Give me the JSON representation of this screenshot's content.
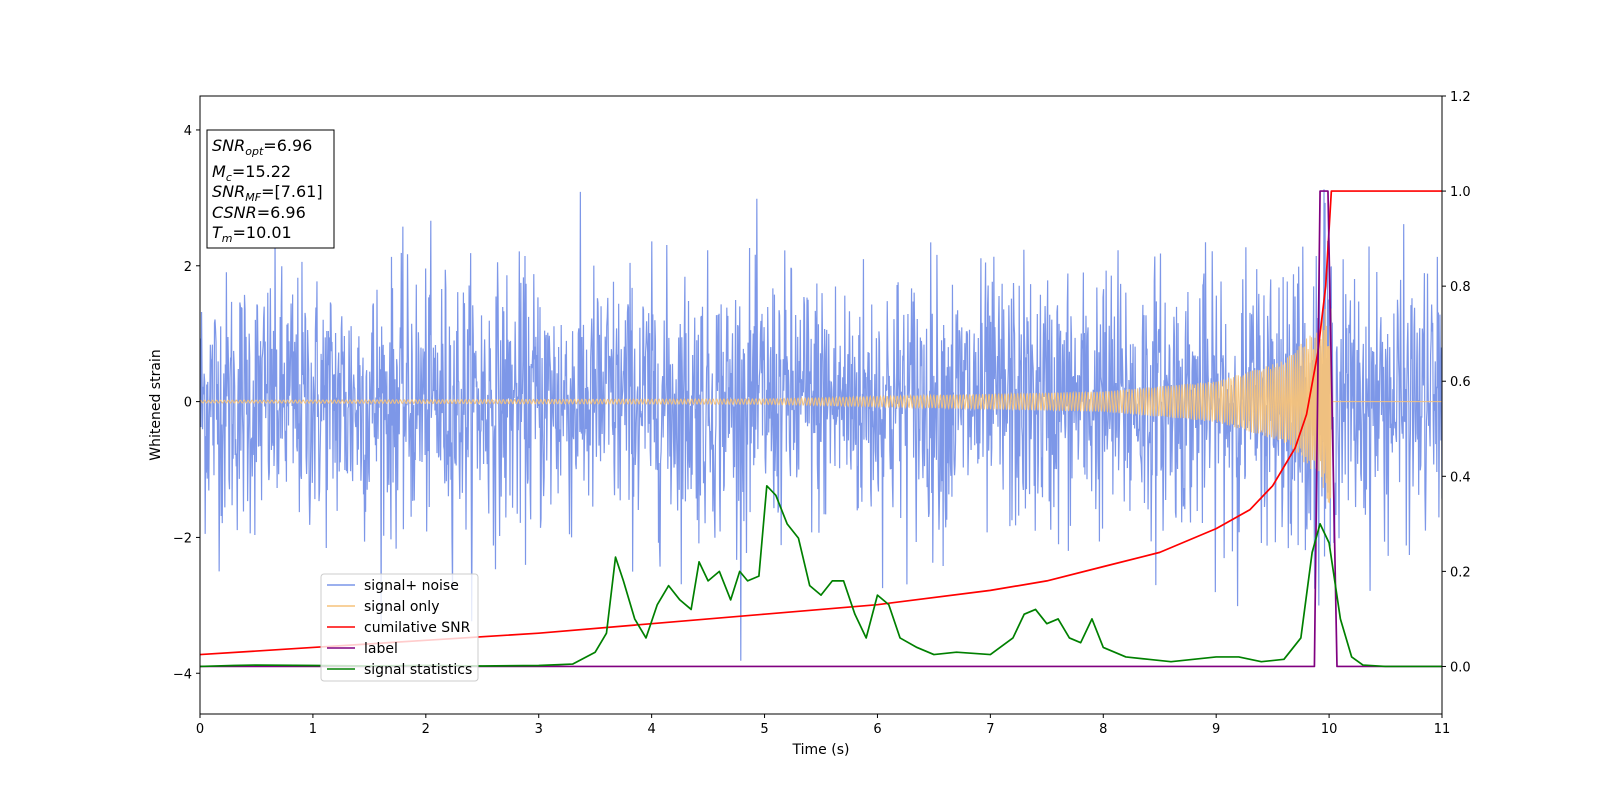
{
  "chart_data": {
    "type": "line",
    "xlabel": "Time (s)",
    "ylabel": "Whitened strain",
    "xlim": [
      0,
      11
    ],
    "ylim_left": [
      -4.6,
      4.5
    ],
    "ylim_right": [
      -0.1,
      1.2
    ],
    "x_ticks": [
      "0",
      "1",
      "2",
      "3",
      "4",
      "5",
      "6",
      "7",
      "8",
      "9",
      "10",
      "11"
    ],
    "y_ticks_left": [
      "−4",
      "−2",
      "0",
      "2",
      "4"
    ],
    "y_ticks_right": [
      "0.0",
      "0.2",
      "0.4",
      "0.6",
      "0.8",
      "1.0",
      "1.2"
    ],
    "grid": false,
    "legend_position": "lower left",
    "annotation": {
      "snr_opt": {
        "label": "SNR",
        "sub": "opt",
        "value": "=6.96"
      },
      "mc": {
        "label": "M",
        "sub": "c",
        "value": "=15.22"
      },
      "snr_mf": {
        "label": "SNR",
        "sub": "MF",
        "value": "=[7.61]"
      },
      "csnr": {
        "label": "CSNR",
        "value": "=6.96"
      },
      "tm": {
        "label": "T",
        "sub": "m",
        "value": "=10.01"
      }
    },
    "series": [
      {
        "name": "signal+ noise",
        "axis": "left",
        "color": "#7a95e8",
        "noise_std": 1.0,
        "noise_range_approx": [
          -4.2,
          4.1
        ],
        "x_range": [
          0,
          11
        ]
      },
      {
        "name": "signal only",
        "axis": "left",
        "color": "#f5c27a",
        "description_points": [
          [
            0,
            0.02
          ],
          [
            5,
            0.04
          ],
          [
            8,
            0.15
          ],
          [
            9,
            0.3
          ],
          [
            9.6,
            0.6
          ],
          [
            9.9,
            1.1
          ],
          [
            10.02,
            1.6
          ]
        ],
        "x_range": [
          0,
          11
        ]
      },
      {
        "name": "cumilative SNR",
        "axis": "right",
        "color": "#ff0000",
        "points": [
          [
            0,
            0.025
          ],
          [
            1,
            0.04
          ],
          [
            2,
            0.055
          ],
          [
            3,
            0.07
          ],
          [
            4,
            0.09
          ],
          [
            5,
            0.11
          ],
          [
            6,
            0.13
          ],
          [
            7,
            0.16
          ],
          [
            7.5,
            0.18
          ],
          [
            8,
            0.21
          ],
          [
            8.5,
            0.24
          ],
          [
            9,
            0.29
          ],
          [
            9.3,
            0.33
          ],
          [
            9.5,
            0.38
          ],
          [
            9.7,
            0.46
          ],
          [
            9.8,
            0.53
          ],
          [
            9.9,
            0.66
          ],
          [
            9.97,
            0.8
          ],
          [
            10.02,
            1.0
          ],
          [
            11,
            1.0
          ]
        ]
      },
      {
        "name": "label",
        "axis": "right",
        "color": "#800080",
        "points": [
          [
            0,
            0.0
          ],
          [
            9.87,
            0.0
          ],
          [
            9.92,
            1.0
          ],
          [
            9.99,
            1.0
          ],
          [
            10.07,
            0.0
          ],
          [
            11,
            0.0
          ]
        ]
      },
      {
        "name": "signal statistics",
        "axis": "right",
        "color": "#008000",
        "points": [
          [
            0,
            0.0
          ],
          [
            0.3,
            0.002
          ],
          [
            0.5,
            0.003
          ],
          [
            1,
            0.002
          ],
          [
            1.5,
            0.001
          ],
          [
            2,
            0.002
          ],
          [
            2.5,
            0.001
          ],
          [
            3,
            0.002
          ],
          [
            3.3,
            0.005
          ],
          [
            3.5,
            0.03
          ],
          [
            3.6,
            0.07
          ],
          [
            3.68,
            0.23
          ],
          [
            3.75,
            0.18
          ],
          [
            3.85,
            0.1
          ],
          [
            3.95,
            0.06
          ],
          [
            4.05,
            0.13
          ],
          [
            4.15,
            0.17
          ],
          [
            4.25,
            0.14
          ],
          [
            4.35,
            0.12
          ],
          [
            4.42,
            0.22
          ],
          [
            4.5,
            0.18
          ],
          [
            4.6,
            0.2
          ],
          [
            4.7,
            0.14
          ],
          [
            4.78,
            0.2
          ],
          [
            4.85,
            0.18
          ],
          [
            4.95,
            0.19
          ],
          [
            5.02,
            0.38
          ],
          [
            5.1,
            0.36
          ],
          [
            5.2,
            0.3
          ],
          [
            5.3,
            0.27
          ],
          [
            5.4,
            0.17
          ],
          [
            5.5,
            0.15
          ],
          [
            5.6,
            0.18
          ],
          [
            5.7,
            0.18
          ],
          [
            5.8,
            0.11
          ],
          [
            5.9,
            0.06
          ],
          [
            6.0,
            0.15
          ],
          [
            6.1,
            0.13
          ],
          [
            6.2,
            0.06
          ],
          [
            6.35,
            0.04
          ],
          [
            6.5,
            0.025
          ],
          [
            6.7,
            0.03
          ],
          [
            7.0,
            0.025
          ],
          [
            7.2,
            0.06
          ],
          [
            7.3,
            0.11
          ],
          [
            7.4,
            0.12
          ],
          [
            7.5,
            0.09
          ],
          [
            7.6,
            0.1
          ],
          [
            7.7,
            0.06
          ],
          [
            7.8,
            0.05
          ],
          [
            7.9,
            0.1
          ],
          [
            8.0,
            0.04
          ],
          [
            8.1,
            0.03
          ],
          [
            8.2,
            0.02
          ],
          [
            8.4,
            0.015
          ],
          [
            8.6,
            0.01
          ],
          [
            8.8,
            0.015
          ],
          [
            9.0,
            0.02
          ],
          [
            9.2,
            0.02
          ],
          [
            9.4,
            0.01
          ],
          [
            9.6,
            0.015
          ],
          [
            9.75,
            0.06
          ],
          [
            9.85,
            0.24
          ],
          [
            9.92,
            0.3
          ],
          [
            10.0,
            0.26
          ],
          [
            10.05,
            0.18
          ],
          [
            10.1,
            0.1
          ],
          [
            10.2,
            0.02
          ],
          [
            10.3,
            0.003
          ],
          [
            10.5,
            0.0
          ],
          [
            11,
            0.0
          ]
        ]
      }
    ]
  }
}
